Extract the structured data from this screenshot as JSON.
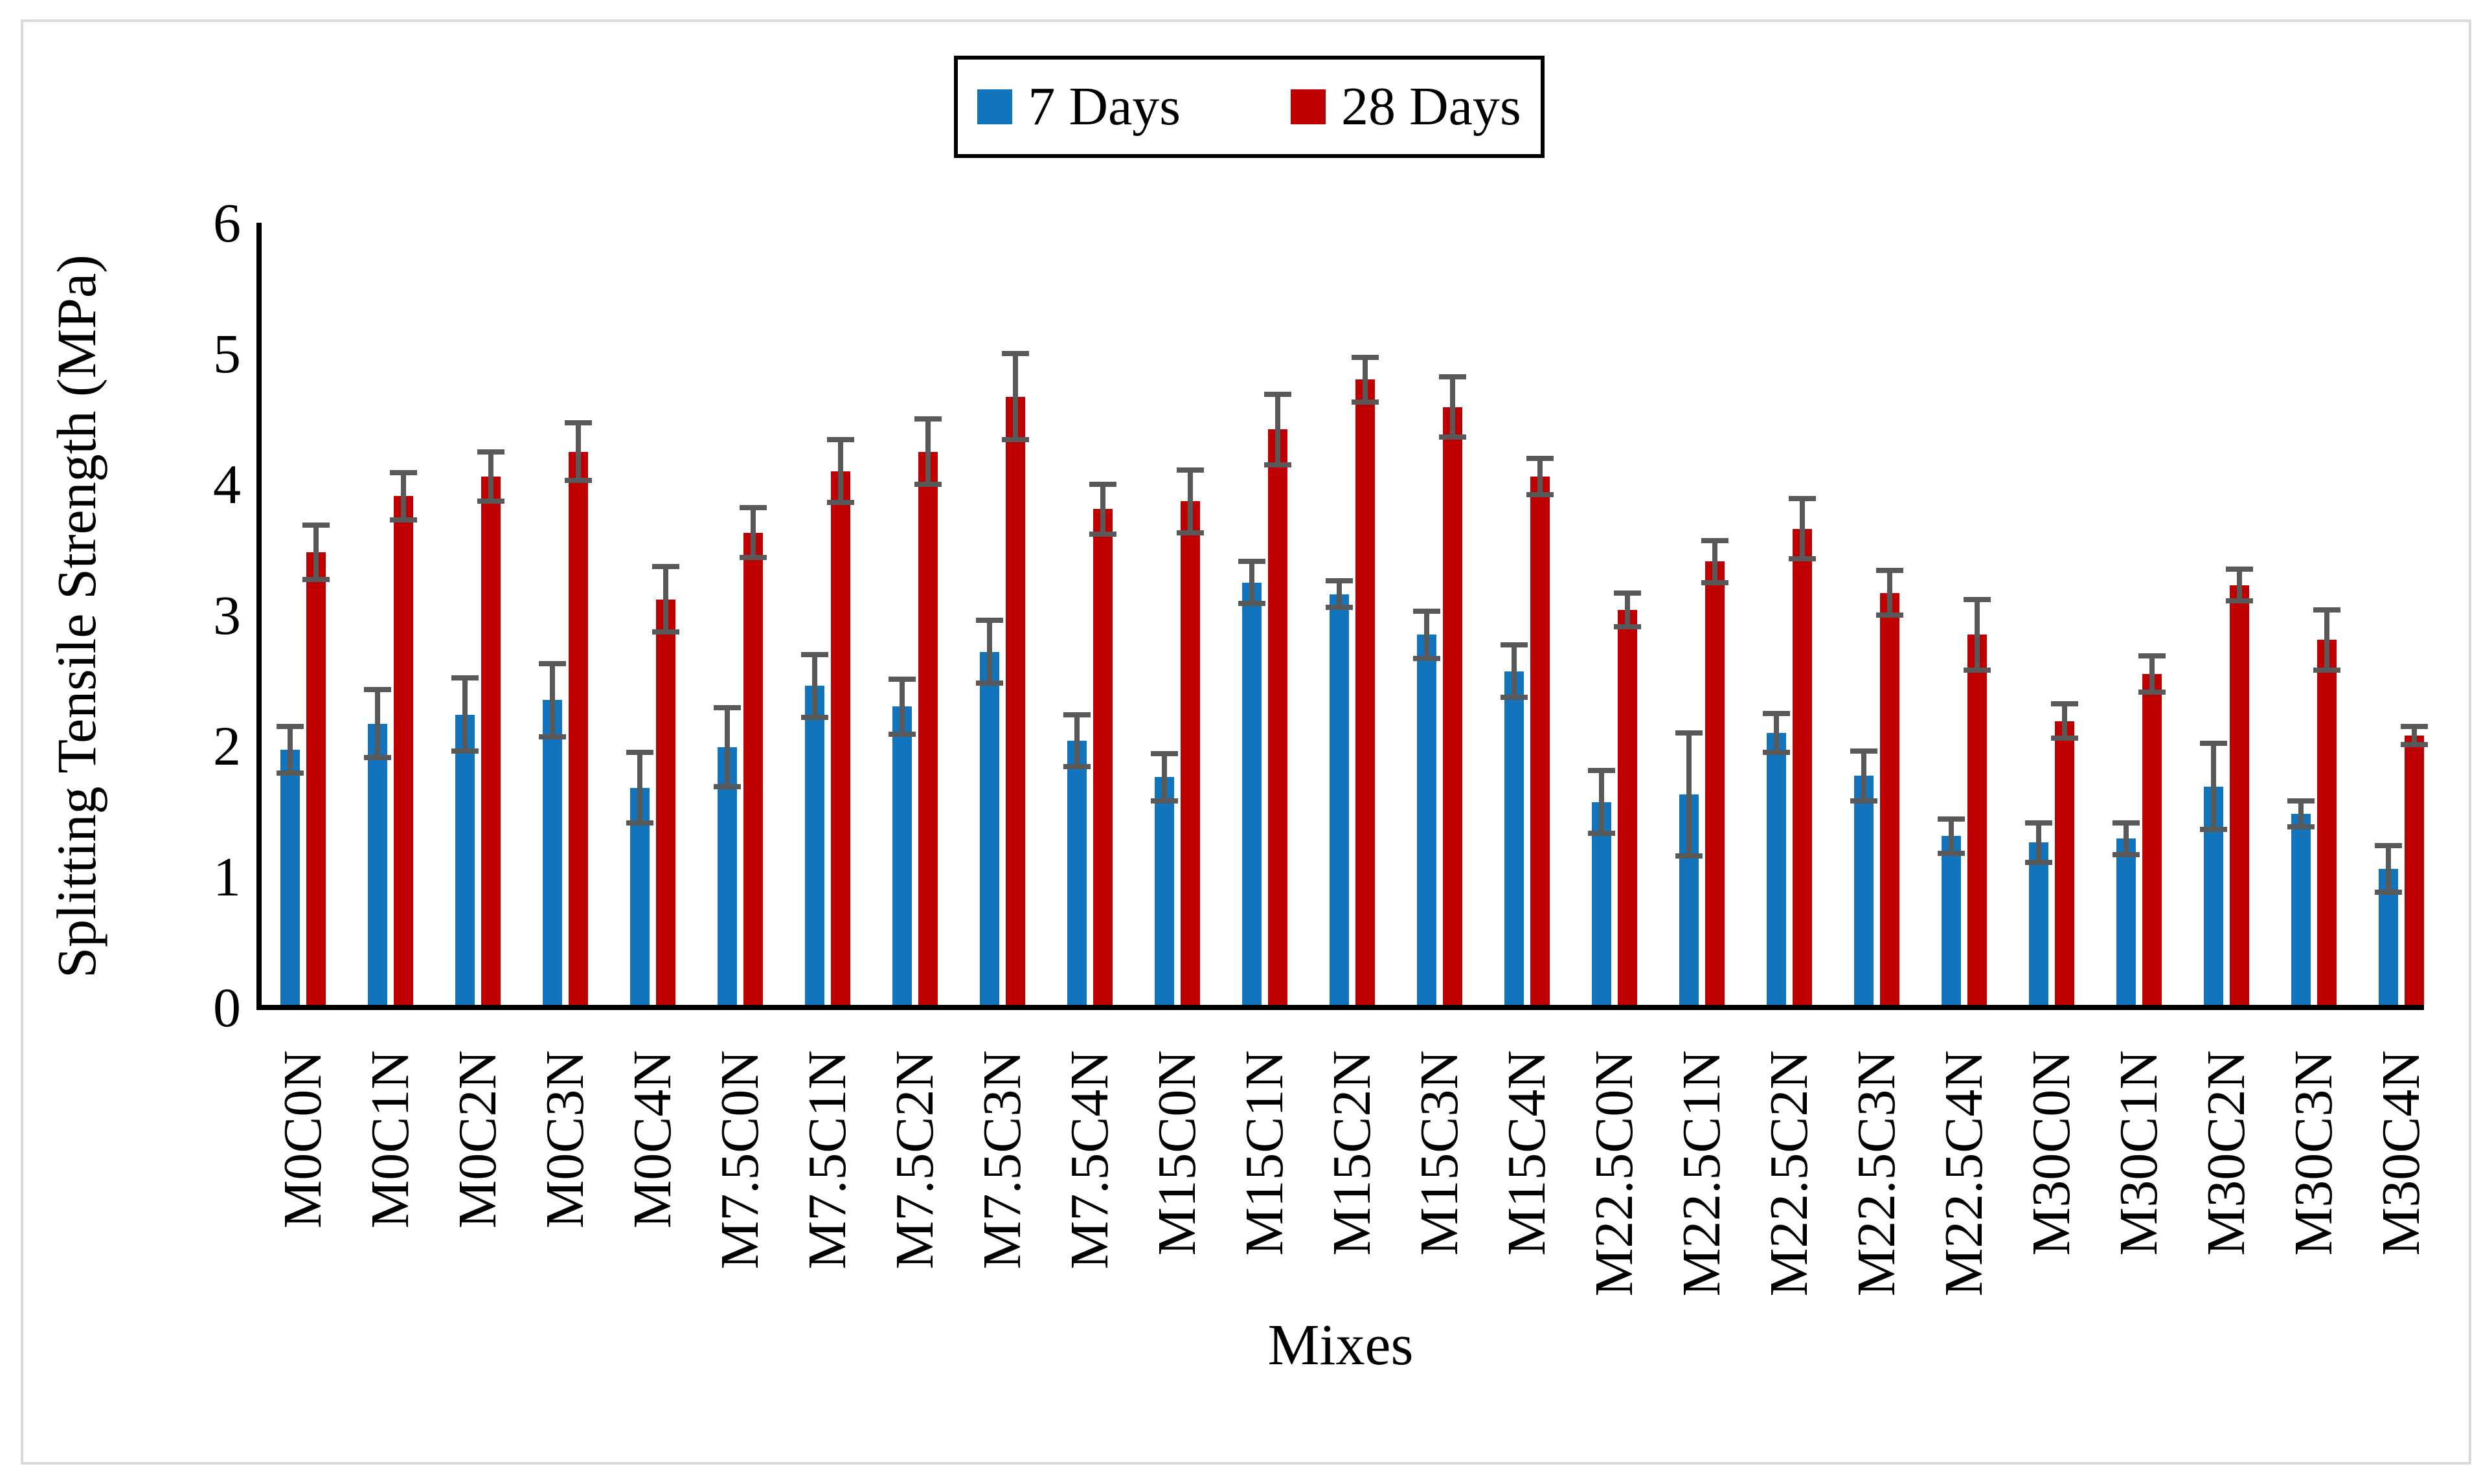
{
  "figure": {
    "background": "#ffffff",
    "border_color": "#d9d9d9"
  },
  "legend": {
    "position": "top-center",
    "border_color": "#000000"
  },
  "chart_data": {
    "type": "bar",
    "title": "",
    "xlabel": "Mixes",
    "ylabel": "Splitting Tensile Strength (MPa)",
    "ylim": [
      0,
      6
    ],
    "y_tick_labels": [
      "0",
      "1",
      "2",
      "3",
      "4",
      "5",
      "6"
    ],
    "grid": false,
    "legend_position": "top-center",
    "error_bar_color": "#595959",
    "axis_color": "#000000",
    "categories": [
      "M0C0N",
      "M0C1N",
      "M0C2N",
      "M0C3N",
      "M0C4N",
      "M7.5C0N",
      "M7.5C1N",
      "M7.5C2N",
      "M7.5C3N",
      "M7.5C4N",
      "M15C0N",
      "M15C1N",
      "M15C2N",
      "M15C3N",
      "M15C4N",
      "M22.5C0N",
      "M22.5C1N",
      "M22.5C2N",
      "M22.5C3N",
      "M22.5C4N",
      "M30C0N",
      "M30C1N",
      "M30C2N",
      "M30C3N",
      "M30C4N"
    ],
    "series": [
      {
        "name": "7 Days",
        "color": "#1274BD",
        "values": [
          1.97,
          2.17,
          2.24,
          2.35,
          1.68,
          1.99,
          2.46,
          2.3,
          2.72,
          2.04,
          1.76,
          3.25,
          3.16,
          2.85,
          2.57,
          1.57,
          1.63,
          2.1,
          1.77,
          1.31,
          1.26,
          1.29,
          1.69,
          1.48,
          1.06
        ],
        "errors": [
          0.18,
          0.26,
          0.28,
          0.28,
          0.27,
          0.3,
          0.24,
          0.21,
          0.24,
          0.2,
          0.18,
          0.16,
          0.1,
          0.18,
          0.2,
          0.24,
          0.47,
          0.15,
          0.19,
          0.13,
          0.15,
          0.12,
          0.33,
          0.1,
          0.18
        ]
      },
      {
        "name": "28 Days",
        "color": "#C00000",
        "values": [
          3.48,
          3.91,
          4.06,
          4.25,
          3.12,
          3.63,
          4.1,
          4.25,
          4.67,
          3.81,
          3.87,
          4.42,
          4.8,
          4.59,
          4.06,
          3.04,
          3.41,
          3.66,
          3.17,
          2.85,
          2.19,
          2.55,
          3.23,
          2.81,
          2.08
        ],
        "errors": [
          0.21,
          0.18,
          0.19,
          0.22,
          0.25,
          0.19,
          0.24,
          0.25,
          0.33,
          0.19,
          0.24,
          0.27,
          0.17,
          0.23,
          0.14,
          0.13,
          0.16,
          0.23,
          0.17,
          0.27,
          0.13,
          0.14,
          0.12,
          0.23,
          0.07
        ]
      }
    ]
  }
}
